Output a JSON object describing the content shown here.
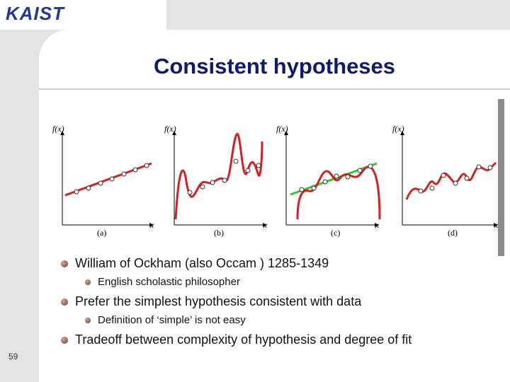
{
  "header": {
    "logo": "KAIST"
  },
  "title": "Consistent hypotheses",
  "figure": {
    "y_label": "f(x)",
    "x_label": "x",
    "panels": [
      "(a)",
      "(b)",
      "(c)",
      "(d)"
    ]
  },
  "bullets": [
    {
      "text": "William of Ockham (also Occam ) 1285-1349",
      "level": 0
    },
    {
      "text": "English scholastic philosopher",
      "level": 1
    },
    {
      "text": "Prefer the simplest hypothesis consistent with data",
      "level": 0
    },
    {
      "text": "Definition of ‘simple’ is not easy",
      "level": 1
    },
    {
      "text": "Tradeoff between complexity of hypothesis and degree of fit",
      "level": 0
    }
  ],
  "page_number": "59"
}
